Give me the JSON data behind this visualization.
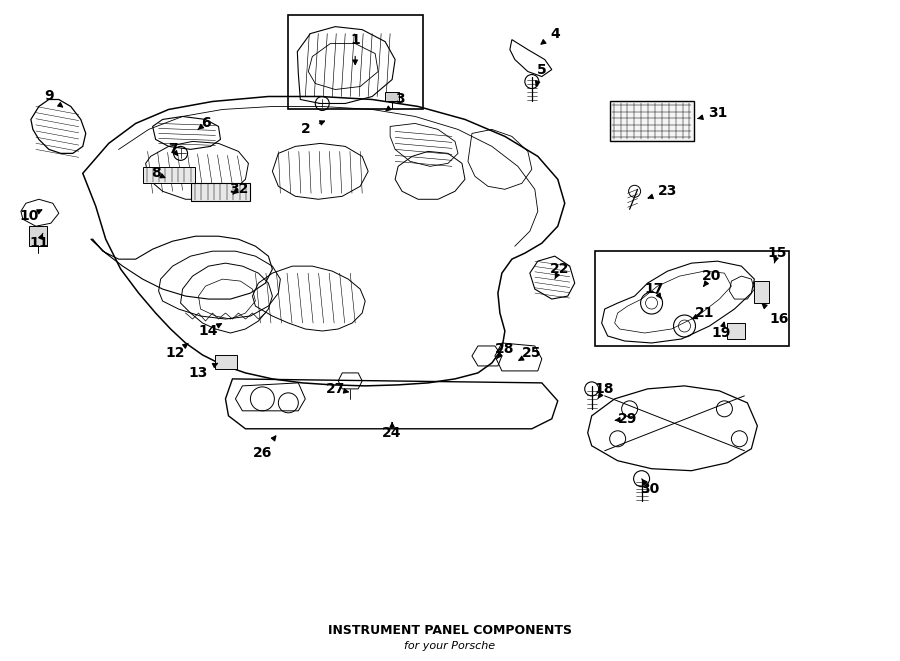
{
  "title": "INSTRUMENT PANEL COMPONENTS",
  "subtitle": "for your Porsche",
  "bg_color": "#ffffff",
  "fig_width": 9.0,
  "fig_height": 6.61,
  "annotations": [
    [
      "1",
      [
        3.55,
        6.22
      ],
      [
        3.55,
        5.93
      ]
    ],
    [
      "2",
      [
        3.05,
        5.32
      ],
      [
        3.28,
        5.42
      ]
    ],
    [
      "3",
      [
        4.0,
        5.62
      ],
      [
        3.85,
        5.5
      ]
    ],
    [
      "4",
      [
        5.55,
        6.28
      ],
      [
        5.38,
        6.15
      ]
    ],
    [
      "5",
      [
        5.42,
        5.92
      ],
      [
        5.35,
        5.72
      ]
    ],
    [
      "6",
      [
        2.05,
        5.38
      ],
      [
        1.95,
        5.3
      ]
    ],
    [
      "7",
      [
        1.72,
        5.12
      ],
      [
        1.78,
        5.05
      ]
    ],
    [
      "8",
      [
        1.55,
        4.88
      ],
      [
        1.68,
        4.82
      ]
    ],
    [
      "9",
      [
        0.48,
        5.65
      ],
      [
        0.65,
        5.52
      ]
    ],
    [
      "10",
      [
        0.28,
        4.45
      ],
      [
        0.42,
        4.52
      ]
    ],
    [
      "11",
      [
        0.38,
        4.18
      ],
      [
        0.42,
        4.28
      ]
    ],
    [
      "12",
      [
        1.75,
        3.08
      ],
      [
        1.88,
        3.18
      ]
    ],
    [
      "13",
      [
        1.98,
        2.88
      ],
      [
        2.18,
        2.98
      ]
    ],
    [
      "14",
      [
        2.08,
        3.3
      ],
      [
        2.22,
        3.38
      ]
    ],
    [
      "15",
      [
        7.78,
        4.08
      ],
      [
        7.75,
        3.98
      ]
    ],
    [
      "16",
      [
        7.8,
        3.42
      ],
      [
        7.62,
        3.58
      ]
    ],
    [
      "17",
      [
        6.55,
        3.72
      ],
      [
        6.62,
        3.62
      ]
    ],
    [
      "18",
      [
        6.05,
        2.72
      ],
      [
        5.98,
        2.62
      ]
    ],
    [
      "19",
      [
        7.22,
        3.28
      ],
      [
        7.25,
        3.4
      ]
    ],
    [
      "20",
      [
        7.12,
        3.85
      ],
      [
        7.02,
        3.72
      ]
    ],
    [
      "21",
      [
        7.05,
        3.48
      ],
      [
        6.92,
        3.42
      ]
    ],
    [
      "22",
      [
        5.6,
        3.92
      ],
      [
        5.55,
        3.82
      ]
    ],
    [
      "23",
      [
        6.68,
        4.7
      ],
      [
        6.45,
        4.62
      ]
    ],
    [
      "24",
      [
        3.92,
        2.28
      ],
      [
        3.92,
        2.42
      ]
    ],
    [
      "25",
      [
        5.32,
        3.08
      ],
      [
        5.18,
        3.0
      ]
    ],
    [
      "26",
      [
        2.62,
        2.08
      ],
      [
        2.78,
        2.28
      ]
    ],
    [
      "27",
      [
        3.35,
        2.72
      ],
      [
        3.52,
        2.68
      ]
    ],
    [
      "28",
      [
        5.05,
        3.12
      ],
      [
        4.95,
        3.0
      ]
    ],
    [
      "29",
      [
        6.28,
        2.42
      ],
      [
        6.12,
        2.4
      ]
    ],
    [
      "30",
      [
        6.5,
        1.72
      ],
      [
        6.42,
        1.82
      ]
    ],
    [
      "31",
      [
        7.18,
        5.48
      ],
      [
        6.95,
        5.42
      ]
    ],
    [
      "32",
      [
        2.38,
        4.72
      ],
      [
        2.3,
        4.65
      ]
    ]
  ]
}
